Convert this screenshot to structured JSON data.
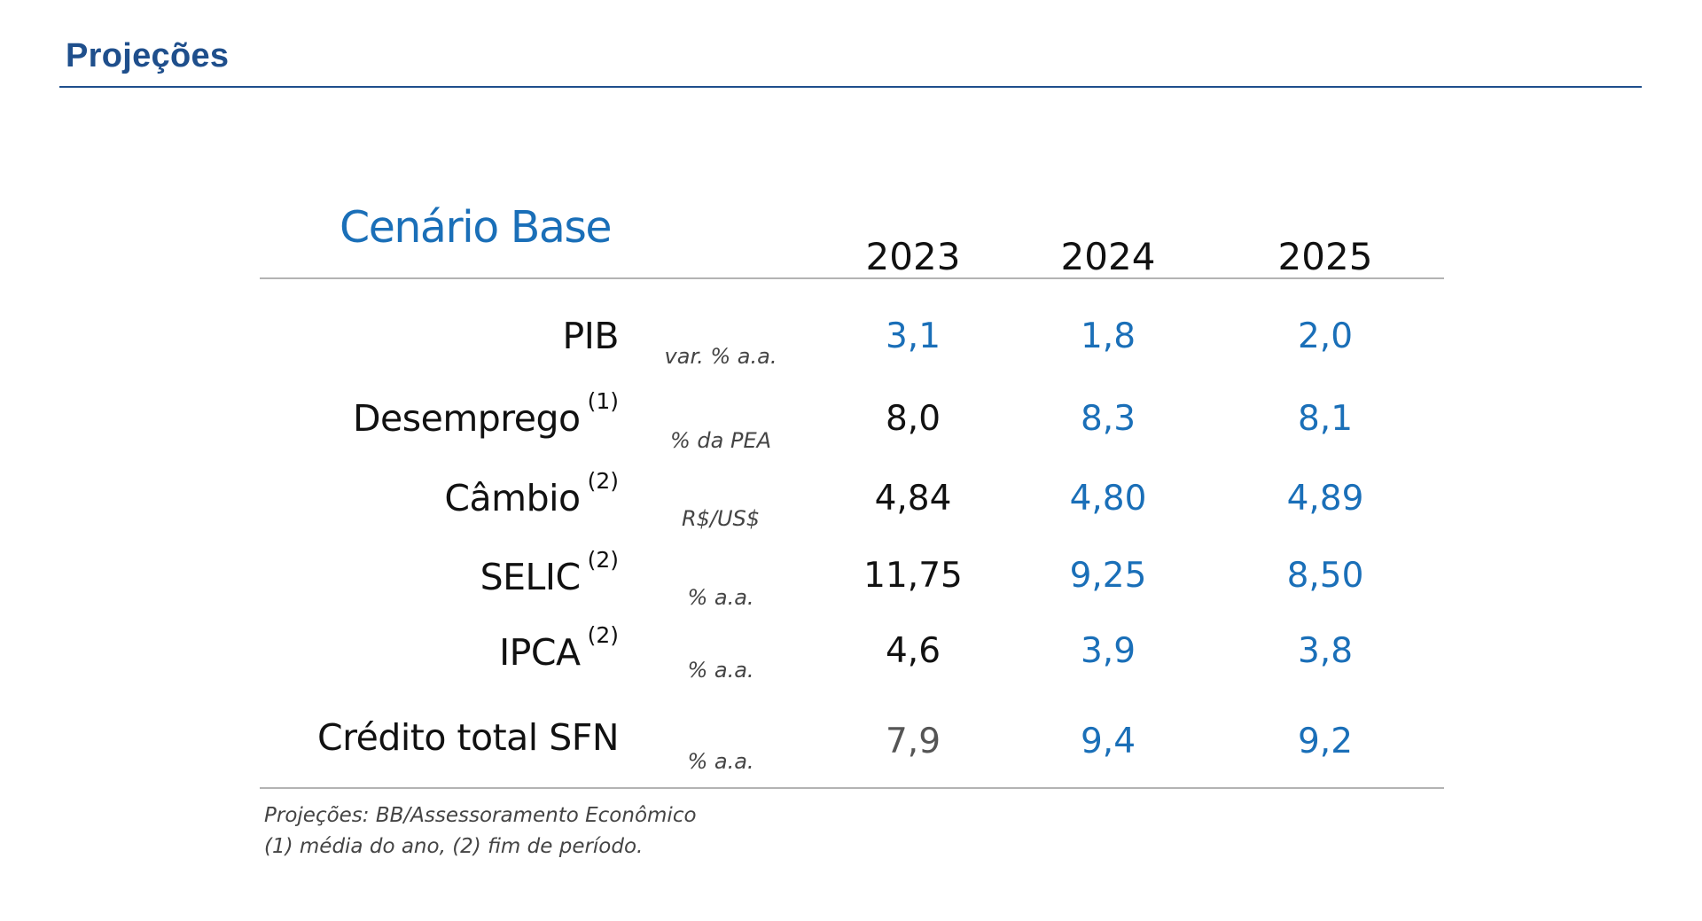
{
  "header": {
    "title": "Projeções"
  },
  "table": {
    "scenario_title": "Cenário Base",
    "years": [
      "2023",
      "2024",
      "2025"
    ],
    "rows": [
      {
        "label": "PIB",
        "note": "",
        "unit": "var. % a.a.",
        "values": [
          "3,1",
          "1,8",
          "2,0"
        ]
      },
      {
        "label": "Desemprego",
        "note": "(1)",
        "unit": "% da PEA",
        "values": [
          "8,0",
          "8,3",
          "8,1"
        ]
      },
      {
        "label": "Câmbio",
        "note": "(2)",
        "unit": "R$/US$",
        "values": [
          "4,84",
          "4,80",
          "4,89"
        ]
      },
      {
        "label": "SELIC",
        "note": "(2)",
        "unit": "% a.a.",
        "values": [
          "11,75",
          "9,25",
          "8,50"
        ]
      },
      {
        "label": "IPCA",
        "note": "(2)",
        "unit": "% a.a.",
        "values": [
          "4,6",
          "3,9",
          "3,8"
        ]
      },
      {
        "label": "Crédito total SFN",
        "note": "",
        "unit": "% a.a.",
        "values": [
          "7,9",
          "9,4",
          "9,2"
        ]
      }
    ],
    "value_colors": {
      "black": "#111111",
      "blue": "#1a6fb8",
      "gray": "#555555"
    }
  },
  "footnotes": {
    "source": "Projeções: BB/Assessoramento Econômico",
    "legend": "(1) média do ano, (2) fim de período."
  },
  "colors": {
    "title": "#1f4f8c",
    "accent": "#1a6fb8",
    "rule": "#b3b3b3"
  }
}
